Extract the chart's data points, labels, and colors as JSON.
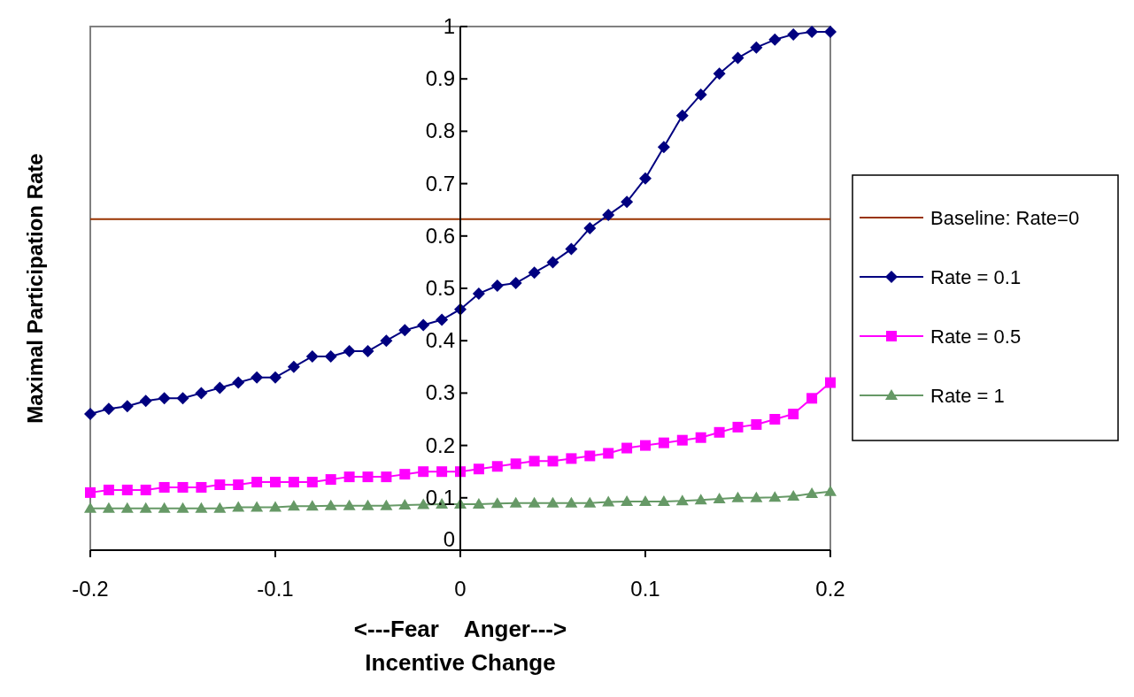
{
  "chart_data": {
    "type": "line",
    "xlabel": "<---Fear    Anger--->\nIncentive Change",
    "ylabel": "Maximal Participation Rate",
    "x": [
      -0.2,
      -0.19,
      -0.18,
      -0.17,
      -0.16,
      -0.15,
      -0.14,
      -0.13,
      -0.12,
      -0.11,
      -0.1,
      -0.09,
      -0.08,
      -0.07,
      -0.06,
      -0.05,
      -0.04,
      -0.03,
      -0.02,
      -0.01,
      0,
      0.01,
      0.02,
      0.03,
      0.04,
      0.05,
      0.06,
      0.07,
      0.08,
      0.09,
      0.1,
      0.11,
      0.12,
      0.13,
      0.14,
      0.15,
      0.16,
      0.17,
      0.18,
      0.19,
      0.2
    ],
    "series": [
      {
        "name": "Baseline: Rate=0",
        "color": "#993300",
        "marker": "none",
        "x": [
          -0.2,
          0.2
        ],
        "values": [
          0.632,
          0.632
        ]
      },
      {
        "name": "Rate = 0.1",
        "color": "#000080",
        "marker": "diamond",
        "values": [
          0.26,
          0.27,
          0.275,
          0.285,
          0.29,
          0.29,
          0.3,
          0.31,
          0.32,
          0.33,
          0.33,
          0.35,
          0.37,
          0.37,
          0.38,
          0.38,
          0.4,
          0.42,
          0.43,
          0.44,
          0.46,
          0.49,
          0.505,
          0.51,
          0.53,
          0.55,
          0.575,
          0.615,
          0.64,
          0.665,
          0.71,
          0.77,
          0.83,
          0.87,
          0.91,
          0.94,
          0.96,
          0.975,
          0.985,
          0.99,
          0.99
        ]
      },
      {
        "name": "Rate = 0.5",
        "color": "#ff00ff",
        "marker": "square",
        "values": [
          0.11,
          0.115,
          0.115,
          0.115,
          0.12,
          0.12,
          0.12,
          0.125,
          0.125,
          0.13,
          0.13,
          0.13,
          0.13,
          0.135,
          0.14,
          0.14,
          0.14,
          0.145,
          0.15,
          0.15,
          0.15,
          0.155,
          0.16,
          0.165,
          0.17,
          0.17,
          0.175,
          0.18,
          0.185,
          0.195,
          0.2,
          0.205,
          0.21,
          0.215,
          0.225,
          0.235,
          0.24,
          0.25,
          0.26,
          0.29,
          0.32
        ]
      },
      {
        "name": "Rate = 1",
        "color": "#669966",
        "marker": "triangle",
        "values": [
          0.08,
          0.08,
          0.08,
          0.08,
          0.08,
          0.08,
          0.08,
          0.08,
          0.082,
          0.082,
          0.082,
          0.084,
          0.084,
          0.085,
          0.085,
          0.085,
          0.085,
          0.086,
          0.087,
          0.088,
          0.088,
          0.088,
          0.089,
          0.09,
          0.09,
          0.09,
          0.09,
          0.09,
          0.092,
          0.093,
          0.093,
          0.093,
          0.094,
          0.096,
          0.098,
          0.1,
          0.1,
          0.101,
          0.103,
          0.108,
          0.112
        ]
      }
    ],
    "xlim": [
      -0.2,
      0.2
    ],
    "xticks": [
      -0.2,
      -0.1,
      0,
      0.1,
      0.2
    ],
    "ylim": [
      0,
      1
    ],
    "yticks": [
      0,
      0.1,
      0.2,
      0.3,
      0.4,
      0.5,
      0.6,
      0.7,
      0.8,
      0.9,
      1
    ],
    "legend": "right",
    "grid": false
  }
}
